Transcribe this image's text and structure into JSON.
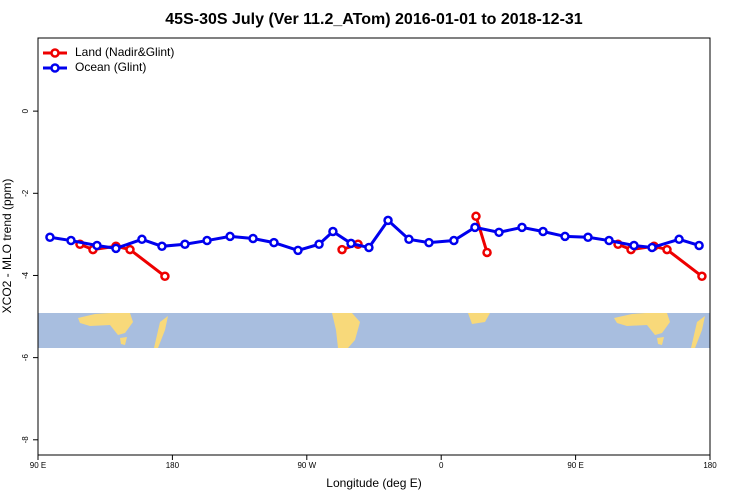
{
  "chart_data": {
    "type": "line",
    "title": "45S-30S July (Ver 11.2_ATom)   2016-01-01 to 2018-12-31",
    "x_label": "Longitude (deg E)",
    "y_label": "XCO2 - MLO trend (ppm)",
    "xlim": [
      90,
      540
    ],
    "ylim": [
      -8.37,
      1.78
    ],
    "xticks": [
      {
        "value": 90,
        "label": "90 E"
      },
      180,
      {
        "value": 270,
        "label": "90 W"
      },
      {
        "value": 360,
        "label": "0"
      },
      {
        "value": 450,
        "label": "90 E"
      },
      {
        "value": 540,
        "label": "180"
      }
    ],
    "yticks": [
      0,
      -2,
      -4,
      -6,
      -8
    ],
    "legend": "top-left",
    "series": [
      {
        "name": "Land (Nadir&Glint)",
        "color": "#ee0000",
        "x": [
          118.1,
          126.8,
          142.2,
          151.6,
          175.0,
          null,
          293.6,
          304.3,
          null,
          383.3,
          390.7,
          null,
          478.4,
          487.1,
          502.5,
          511.2,
          534.6
        ],
        "values": [
          -3.24,
          -3.37,
          -3.29,
          -3.37,
          -4.02,
          null,
          -3.37,
          -3.24,
          null,
          -2.56,
          -3.44,
          null,
          -3.24,
          -3.37,
          -3.29,
          -3.37,
          -4.02
        ]
      },
      {
        "name": "Ocean (Glint)",
        "color": "#0000ee",
        "x": [
          98.0,
          112.1,
          129.5,
          142.2,
          159.6,
          173.0,
          188.4,
          203.2,
          218.6,
          234.0,
          248.0,
          264.1,
          278.2,
          287.5,
          299.6,
          311.6,
          324.4,
          338.4,
          351.8,
          368.5,
          382.6,
          398.7,
          414.1,
          428.2,
          442.9,
          458.3,
          472.4,
          489.1,
          501.2,
          519.3,
          532.7
        ],
        "values": [
          -3.07,
          -3.15,
          -3.27,
          -3.34,
          -3.12,
          -3.29,
          -3.24,
          -3.15,
          -3.05,
          -3.1,
          -3.2,
          -3.39,
          -3.24,
          -2.93,
          -3.22,
          -3.32,
          -2.66,
          -3.12,
          -3.2,
          -3.15,
          -2.83,
          -2.95,
          -2.83,
          -2.93,
          -3.05,
          -3.07,
          -3.15,
          -3.27,
          -3.32,
          -3.12,
          -3.27
        ]
      }
    ]
  }
}
